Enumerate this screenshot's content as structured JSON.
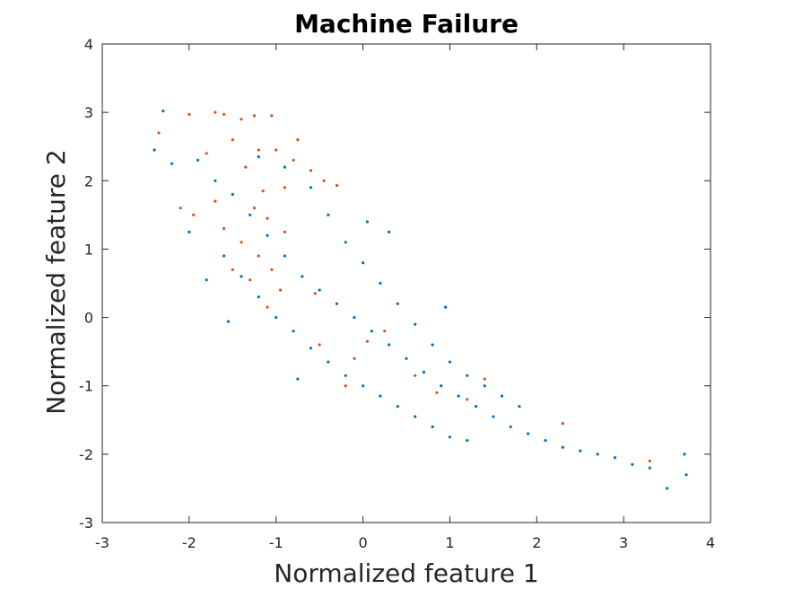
{
  "chart_data": {
    "type": "scatter",
    "title": "Machine Failure",
    "xlabel": "Normalized feature 1",
    "ylabel": "Normalized feature 2",
    "xlim": [
      -3,
      4
    ],
    "ylim": [
      -3,
      4
    ],
    "xticks": [
      "-3",
      "-2",
      "-1",
      "0",
      "1",
      "2",
      "3",
      "4"
    ],
    "yticks": [
      "-3",
      "-2",
      "-1",
      "0",
      "1",
      "2",
      "3",
      "4"
    ],
    "grid": false,
    "legend": "none",
    "series": [
      {
        "color": "#0072BD",
        "points": [
          [
            -2.3,
            3.02
          ],
          [
            -2.4,
            2.45
          ],
          [
            -2.2,
            2.25
          ],
          [
            -2.0,
            1.25
          ],
          [
            -1.8,
            0.55
          ],
          [
            -1.55,
            -0.06
          ],
          [
            -0.75,
            -0.9
          ],
          [
            0.05,
            1.4
          ],
          [
            0.3,
            1.25
          ],
          [
            0.95,
            0.15
          ],
          [
            3.7,
            -2.0
          ],
          [
            3.72,
            -2.3
          ],
          [
            3.5,
            -2.5
          ],
          [
            -1.9,
            2.3
          ],
          [
            -1.7,
            2.0
          ],
          [
            -1.5,
            1.8
          ],
          [
            -1.3,
            1.5
          ],
          [
            -1.1,
            1.2
          ],
          [
            -0.9,
            0.9
          ],
          [
            -0.7,
            0.6
          ],
          [
            -0.5,
            0.4
          ],
          [
            -0.3,
            0.2
          ],
          [
            -0.1,
            0.0
          ],
          [
            0.1,
            -0.2
          ],
          [
            0.3,
            -0.4
          ],
          [
            0.5,
            -0.6
          ],
          [
            0.7,
            -0.8
          ],
          [
            0.9,
            -1.0
          ],
          [
            1.1,
            -1.15
          ],
          [
            1.3,
            -1.3
          ],
          [
            1.5,
            -1.45
          ],
          [
            1.7,
            -1.6
          ],
          [
            1.9,
            -1.7
          ],
          [
            2.1,
            -1.8
          ],
          [
            2.3,
            -1.9
          ],
          [
            2.5,
            -1.95
          ],
          [
            2.7,
            -2.0
          ],
          [
            2.9,
            -2.05
          ],
          [
            3.1,
            -2.15
          ],
          [
            3.3,
            -2.2
          ],
          [
            -1.2,
            2.35
          ],
          [
            -0.9,
            2.2
          ],
          [
            -0.6,
            1.9
          ],
          [
            -0.4,
            1.5
          ],
          [
            -0.2,
            1.1
          ],
          [
            0.0,
            0.8
          ],
          [
            0.2,
            0.5
          ],
          [
            0.4,
            0.2
          ],
          [
            0.6,
            -0.1
          ],
          [
            0.8,
            -0.4
          ],
          [
            1.0,
            -0.65
          ],
          [
            1.2,
            -0.85
          ],
          [
            1.4,
            -1.0
          ],
          [
            1.6,
            -1.15
          ],
          [
            1.8,
            -1.3
          ],
          [
            -1.6,
            0.9
          ],
          [
            -1.4,
            0.6
          ],
          [
            -1.2,
            0.3
          ],
          [
            -1.0,
            0.0
          ],
          [
            -0.8,
            -0.2
          ],
          [
            -0.6,
            -0.45
          ],
          [
            -0.4,
            -0.65
          ],
          [
            -0.2,
            -0.85
          ],
          [
            0.0,
            -1.0
          ],
          [
            0.2,
            -1.15
          ],
          [
            0.4,
            -1.3
          ],
          [
            0.6,
            -1.45
          ],
          [
            0.8,
            -1.6
          ],
          [
            1.0,
            -1.75
          ],
          [
            1.2,
            -1.8
          ]
        ]
      },
      {
        "color": "#D95319",
        "points": [
          [
            -2.0,
            2.97
          ],
          [
            -1.7,
            3.0
          ],
          [
            -1.6,
            2.97
          ],
          [
            -1.4,
            2.9
          ],
          [
            -1.25,
            2.95
          ],
          [
            -1.05,
            2.95
          ],
          [
            -2.35,
            2.7
          ],
          [
            -2.1,
            1.6
          ],
          [
            -1.95,
            1.5
          ],
          [
            -1.8,
            2.4
          ],
          [
            -1.5,
            2.6
          ],
          [
            -1.35,
            2.2
          ],
          [
            -1.2,
            2.45
          ],
          [
            -1.0,
            2.45
          ],
          [
            -0.75,
            2.6
          ],
          [
            -0.8,
            2.3
          ],
          [
            -0.6,
            2.15
          ],
          [
            -0.45,
            2.0
          ],
          [
            -0.3,
            1.93
          ],
          [
            -1.6,
            1.3
          ],
          [
            -1.4,
            1.1
          ],
          [
            -1.2,
            0.9
          ],
          [
            -1.05,
            0.7
          ],
          [
            -0.95,
            0.4
          ],
          [
            -1.1,
            0.15
          ],
          [
            -1.25,
            1.6
          ],
          [
            -1.1,
            1.45
          ],
          [
            -0.9,
            1.25
          ],
          [
            -1.3,
            0.55
          ],
          [
            -1.15,
            1.85
          ],
          [
            -0.9,
            1.9
          ],
          [
            -0.5,
            -0.4
          ],
          [
            -0.2,
            -1.0
          ],
          [
            -0.1,
            -0.6
          ],
          [
            0.05,
            -0.35
          ],
          [
            0.25,
            -0.2
          ],
          [
            0.6,
            -0.85
          ],
          [
            0.85,
            -1.1
          ],
          [
            1.2,
            -1.2
          ],
          [
            1.4,
            -0.9
          ],
          [
            2.3,
            -1.55
          ],
          [
            3.3,
            -2.1
          ],
          [
            -1.5,
            0.7
          ],
          [
            -1.7,
            1.7
          ],
          [
            -0.55,
            0.35
          ]
        ]
      }
    ]
  }
}
